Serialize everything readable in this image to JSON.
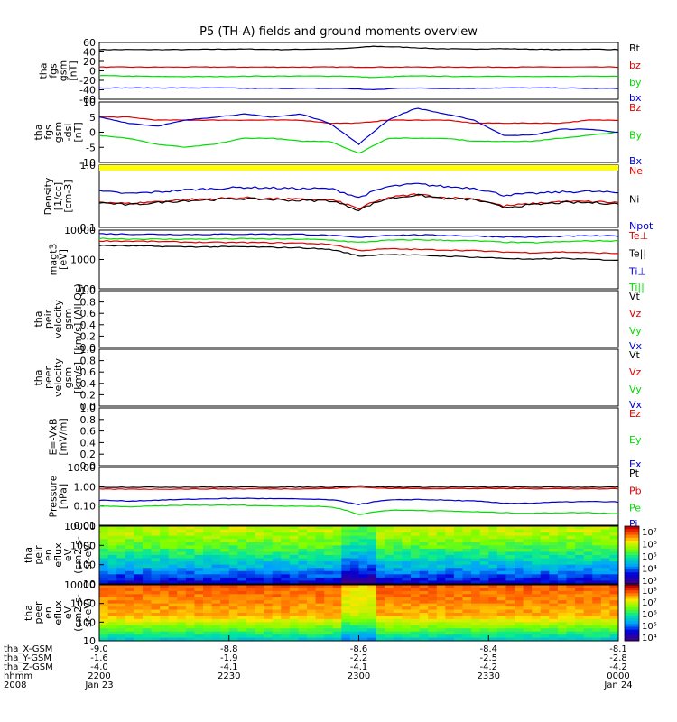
{
  "title": "P5 (TH-A) fields and ground moments overview",
  "colors": {
    "black": "#000000",
    "red": "#e00000",
    "green": "#00dd00",
    "blue": "#0000d0",
    "yellow": "#ffff00"
  },
  "chart_data": [
    {
      "type": "line",
      "panel": "tha_fgs_gsm",
      "ylabel": [
        "tha",
        "fgs",
        "gsm",
        "[nT]"
      ],
      "ylim": [
        -60,
        60
      ],
      "yticks": [
        "60",
        "40",
        "20",
        "0",
        "-20",
        "-40",
        "-60"
      ],
      "legend": [
        "Bt",
        "bz",
        "by",
        "bx"
      ],
      "series": [
        {
          "name": "Bt",
          "color": "black",
          "values": [
            45,
            45,
            45,
            45,
            46,
            46,
            45,
            46,
            47,
            52,
            50,
            47,
            46,
            47,
            46,
            45,
            46,
            45
          ]
        },
        {
          "name": "bz",
          "color": "red",
          "values": [
            8,
            8,
            8,
            8,
            8,
            8,
            8,
            8,
            8,
            8,
            8,
            8,
            8,
            8,
            8,
            8,
            8,
            8
          ]
        },
        {
          "name": "by",
          "color": "green",
          "values": [
            -10,
            -11,
            -12,
            -12,
            -12,
            -11,
            -11,
            -11,
            -11,
            -14,
            -11,
            -11,
            -12,
            -11,
            -12,
            -12,
            -11,
            -11
          ]
        },
        {
          "name": "bx",
          "color": "blue",
          "values": [
            -36,
            -36,
            -36,
            -36,
            -36,
            -37,
            -37,
            -37,
            -37,
            -40,
            -36,
            -37,
            -37,
            -36,
            -36,
            -36,
            -37,
            -37
          ]
        }
      ]
    },
    {
      "type": "line",
      "panel": "tha_fgs_gsm_dsl",
      "ylabel": [
        "tha",
        "fgs",
        "gsm",
        "-dsl",
        "[nT]"
      ],
      "ylim": [
        -10,
        10
      ],
      "yticks": [
        "10",
        "5",
        "0",
        "-5",
        "-10"
      ],
      "legend": [
        "Bz",
        "By",
        "Bx"
      ],
      "series": [
        {
          "name": "Bz",
          "color": "red",
          "values": [
            5,
            5,
            4,
            4,
            4,
            4,
            4,
            4,
            3,
            3,
            4,
            4,
            4,
            3,
            3,
            3,
            3,
            4,
            4
          ]
        },
        {
          "name": "By",
          "color": "green",
          "values": [
            -1,
            -2,
            -4,
            -5,
            -4,
            -2,
            -2,
            -3,
            -3,
            -7,
            -2,
            -2,
            -2,
            -3,
            -3,
            -3,
            -2,
            -1,
            0
          ]
        },
        {
          "name": "Bx",
          "color": "blue",
          "values": [
            5,
            3,
            2,
            4,
            5,
            6,
            5,
            6,
            3,
            -4,
            4,
            8,
            6,
            4,
            -1,
            -1,
            1,
            1,
            0
          ]
        }
      ]
    },
    {
      "type": "line",
      "panel": "density",
      "ylabel": [
        "Density",
        "[1/cc]",
        "[cm-3]"
      ],
      "ylim": [
        0.1,
        1
      ],
      "scale": "log",
      "yticks": [
        "1.0",
        "0.1"
      ],
      "legend": [
        "Ne",
        "Ni",
        "Npot"
      ],
      "series": [
        {
          "name": "Ni",
          "color": "blue",
          "values": [
            0.38,
            0.35,
            0.37,
            0.4,
            0.42,
            0.44,
            0.43,
            0.42,
            0.42,
            0.3,
            0.45,
            0.5,
            0.45,
            0.43,
            0.33,
            0.35,
            0.37,
            0.38,
            0.36
          ]
        },
        {
          "name": "Ne",
          "color": "red",
          "values": [
            0.26,
            0.24,
            0.26,
            0.28,
            0.29,
            0.3,
            0.29,
            0.28,
            0.28,
            0.2,
            0.3,
            0.34,
            0.3,
            0.29,
            0.22,
            0.24,
            0.26,
            0.26,
            0.25
          ]
        },
        {
          "name": "Npot",
          "color": "black",
          "values": [
            0.25,
            0.23,
            0.25,
            0.27,
            0.28,
            0.29,
            0.28,
            0.27,
            0.27,
            0.19,
            0.29,
            0.33,
            0.29,
            0.28,
            0.21,
            0.23,
            0.25,
            0.25,
            0.24
          ]
        }
      ]
    },
    {
      "type": "line",
      "panel": "temperature",
      "ylabel": [
        "magt3",
        "[eV]"
      ],
      "ylim": [
        100,
        10000
      ],
      "scale": "log",
      "yticks": [
        "10000",
        "1000",
        "100"
      ],
      "legend": [
        "Te⊥",
        "Te||",
        "Ti⊥",
        "Ti||"
      ],
      "series": [
        {
          "name": "Ti⊥",
          "color": "blue",
          "values": [
            7500,
            7300,
            7200,
            7100,
            7200,
            7300,
            7300,
            7200,
            6600,
            5500,
            6700,
            6900,
            6600,
            6300,
            5900,
            5700,
            6100,
            6400,
            6300
          ]
        },
        {
          "name": "Ti||",
          "color": "green",
          "values": [
            5200,
            5000,
            4900,
            4900,
            5000,
            5100,
            5000,
            4900,
            4600,
            3800,
            4500,
            4700,
            4500,
            4300,
            3900,
            3700,
            4000,
            4300,
            4300
          ]
        },
        {
          "name": "Te⊥",
          "color": "red",
          "values": [
            4300,
            4200,
            4100,
            3900,
            3800,
            3800,
            3700,
            3600,
            3300,
            2000,
            2300,
            2200,
            2100,
            2000,
            1800,
            1700,
            1800,
            1700,
            1600
          ]
        },
        {
          "name": "Te||",
          "color": "black",
          "values": [
            3000,
            2900,
            2800,
            2700,
            2700,
            2700,
            2600,
            2500,
            2200,
            1300,
            1500,
            1400,
            1300,
            1200,
            1100,
            1000,
            1100,
            1000,
            950
          ]
        }
      ]
    },
    {
      "type": "line",
      "panel": "peir_velocity",
      "ylabel": [
        "tha",
        "peir",
        "velocity",
        "gsm",
        "[km/s] (All Qs)"
      ],
      "ylim": [
        0,
        1
      ],
      "yticks": [
        "1.0",
        "0.8",
        "0.6",
        "0.4",
        "0.2",
        "0.0"
      ],
      "legend": [
        "Vt",
        "Vz",
        "Vy",
        "Vx"
      ],
      "series": []
    },
    {
      "type": "line",
      "panel": "peer_velocity",
      "ylabel": [
        "tha",
        "peer",
        "velocity",
        "gsm",
        "[km/s]"
      ],
      "ylim": [
        0,
        1
      ],
      "yticks": [
        "1.0",
        "0.8",
        "0.6",
        "0.4",
        "0.2",
        "0.0"
      ],
      "legend": [
        "Vt",
        "Vz",
        "Vy",
        "Vx"
      ],
      "series": []
    },
    {
      "type": "line",
      "panel": "efield",
      "ylabel": [
        "E=-VxB",
        "[mV/m]"
      ],
      "ylim": [
        0,
        1
      ],
      "yticks": [
        "1.0",
        "0.8",
        "0.6",
        "0.4",
        "0.2",
        "0.0"
      ],
      "legend": [
        "Ez",
        "Ey",
        "Ex"
      ],
      "series": []
    },
    {
      "type": "line",
      "panel": "pressure",
      "ylabel": [
        "Pressure",
        "[nPa]"
      ],
      "ylim": [
        0.01,
        10
      ],
      "scale": "log",
      "yticks": [
        "10.00",
        "1.00",
        "0.10",
        "0.01"
      ],
      "legend": [
        "Pt",
        "Pb",
        "Pe",
        "Pi"
      ],
      "series": [
        {
          "name": "Pt",
          "color": "black",
          "values": [
            0.95,
            0.95,
            0.95,
            0.95,
            0.95,
            0.95,
            0.95,
            0.95,
            0.95,
            1.1,
            0.95,
            0.95,
            0.95,
            0.95,
            0.95,
            0.95,
            0.95,
            0.95,
            0.95
          ]
        },
        {
          "name": "Pb",
          "color": "red",
          "values": [
            0.75,
            0.75,
            0.75,
            0.76,
            0.77,
            0.77,
            0.77,
            0.78,
            0.8,
            0.95,
            0.82,
            0.8,
            0.8,
            0.8,
            0.8,
            0.79,
            0.79,
            0.78,
            0.78
          ]
        },
        {
          "name": "Pi",
          "color": "blue",
          "values": [
            0.2,
            0.18,
            0.2,
            0.22,
            0.24,
            0.25,
            0.24,
            0.23,
            0.21,
            0.12,
            0.2,
            0.22,
            0.2,
            0.18,
            0.14,
            0.14,
            0.16,
            0.17,
            0.16
          ]
        },
        {
          "name": "Pe",
          "color": "green",
          "values": [
            0.1,
            0.09,
            0.1,
            0.11,
            0.11,
            0.11,
            0.1,
            0.1,
            0.09,
            0.035,
            0.06,
            0.06,
            0.055,
            0.05,
            0.045,
            0.042,
            0.045,
            0.045,
            0.04
          ]
        }
      ]
    },
    {
      "type": "heatmap",
      "panel": "peir_eflux",
      "ylabel": [
        "tha",
        "peir",
        "en",
        "eflux",
        "eV",
        "(cm2-s-",
        "sr-eV)"
      ],
      "ylim": [
        7,
        20000
      ],
      "scale": "log",
      "yticks": [
        "10000",
        "1000",
        "100",
        "10"
      ],
      "colorbar_ticks": [
        "10⁷",
        "10⁶",
        "10⁵",
        "10⁴",
        "10³"
      ]
    },
    {
      "type": "heatmap",
      "panel": "peer_eflux",
      "ylabel": [
        "tha",
        "peer",
        "en",
        "eflux",
        "eV",
        "(cm2-s-",
        "sr-eV)"
      ],
      "ylim": [
        7,
        20000
      ],
      "scale": "log",
      "yticks": [
        "10000",
        "1000",
        "100",
        "10"
      ],
      "colorbar_ticks": [
        "10⁸",
        "10⁷",
        "10⁶",
        "10⁵",
        "10⁴"
      ]
    }
  ],
  "xaxis": {
    "columns": [
      {
        "labels": [
          "-9.0",
          "-1.6",
          "-4.0",
          "2200",
          "Jan 23"
        ]
      },
      {
        "labels": [
          "-8.8",
          "-1.9",
          "-4.1",
          "2230",
          ""
        ]
      },
      {
        "labels": [
          "-8.6",
          "-2.2",
          "-4.1",
          "2300",
          ""
        ]
      },
      {
        "labels": [
          "-8.4",
          "-2.5",
          "-4.2",
          "2330",
          ""
        ]
      },
      {
        "labels": [
          "-8.1",
          "-2.8",
          "-4.2",
          "0000",
          "Jan 24"
        ]
      }
    ],
    "row_labels": [
      "tha_X-GSM",
      "tha_Y-GSM",
      "tha_Z-GSM",
      "hhmm",
      "2008"
    ]
  }
}
